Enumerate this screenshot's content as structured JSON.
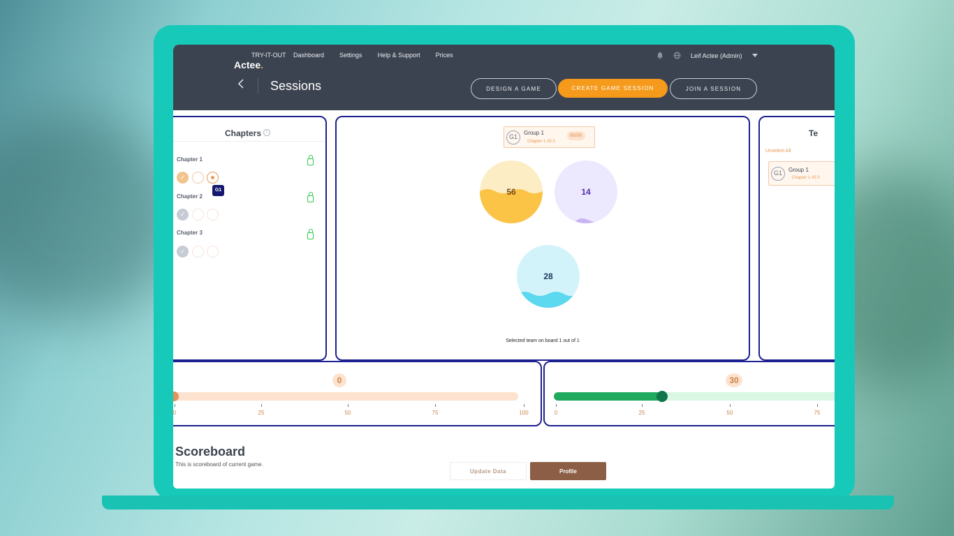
{
  "brand": {
    "tagline": "TRY-IT-OUT",
    "name": "Actee",
    "dot": "."
  },
  "nav": {
    "items": [
      "Dashboard",
      "Settings",
      "Help & Support",
      "Prices"
    ]
  },
  "user": {
    "name": "Leif Actee (Admin)"
  },
  "page": {
    "title": "Sessions"
  },
  "actions": {
    "design": "DESIGN A GAME",
    "create": "CREATE GAME SESSION",
    "join": "JOIN A SESSION"
  },
  "chapters": {
    "title": "Chapters",
    "items": [
      {
        "label": "Chapter 1"
      },
      {
        "label": "Chapter 2"
      },
      {
        "label": "Chapter 3"
      }
    ],
    "badge": "G1"
  },
  "board": {
    "group": {
      "avatar": "G1",
      "name": "Group 1",
      "meta": "Chapter 1   #5   0",
      "score": "86/86"
    },
    "bubbles": [
      {
        "value": "56",
        "color": "#fbc447",
        "bg": "#fdedc4",
        "fill": 0.45
      },
      {
        "value": "14",
        "color": "#c6b5f2",
        "bg": "#ece8fd",
        "fill": 0.05
      },
      {
        "value": "28",
        "color": "#5cd8ef",
        "bg": "#d2f3fa",
        "fill": 0.2
      }
    ],
    "footer": "Selected team on board 1 out of 1"
  },
  "teams": {
    "title": "Te",
    "unselect": "Unselect All",
    "card": {
      "avatar": "G1",
      "name": "Group 1",
      "meta": "Chapter 1   #5   0"
    }
  },
  "sliders": [
    {
      "value": "0",
      "level": 0,
      "ticks": [
        "0",
        "25",
        "50",
        "75",
        "100"
      ]
    },
    {
      "value": "30",
      "level": 30,
      "ticks": [
        "0",
        "25",
        "50",
        "75"
      ]
    }
  ],
  "scoreboard": {
    "title": "Scoreboard",
    "subtitle": "This is scoreboard of current game.",
    "update": "Update Data",
    "profile": "Profile"
  }
}
